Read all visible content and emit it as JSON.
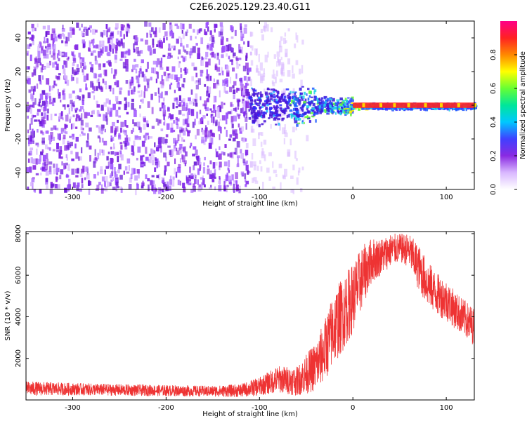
{
  "title": "C2E6.2025.129.23.40.G11",
  "colors": {
    "snr_line": "#ee3333",
    "spectrogram_low": "#7a1fe6",
    "spectrogram_mid": "#22d4e6",
    "spectrogram_high": "#ff2222"
  },
  "chart_data": [
    {
      "type": "heatmap",
      "name": "spectrogram",
      "xlabel": "Height of straight line (km)",
      "ylabel": "Frequency (Hz)",
      "xlim": [
        -350,
        130
      ],
      "ylim": [
        -50,
        50
      ],
      "xticks": [
        -300,
        -200,
        -100,
        0,
        100
      ],
      "yticks": [
        -40,
        -20,
        0,
        20,
        40
      ],
      "colorbar": {
        "label": "Normalized spectral amplitude",
        "range": [
          0,
          1
        ],
        "ticks": [
          "0.0",
          "0.2",
          "0.4",
          "0.6",
          "0.8"
        ],
        "colors": [
          "#ffffff",
          "#d9b8ff",
          "#8a2be2",
          "#4040ff",
          "#00c8ff",
          "#00e69a",
          "#66ff33",
          "#ffff00",
          "#ff8800",
          "#ff2222",
          "#ff0088"
        ]
      },
      "regions": [
        {
          "x_range": [
            -350,
            -110
          ],
          "freq_range": [
            -50,
            50
          ],
          "amplitude": 0.15
        },
        {
          "x_range": [
            -110,
            -40
          ],
          "freq_range": [
            -12,
            12
          ],
          "amplitude": 0.35
        },
        {
          "x_range": [
            -40,
            0
          ],
          "freq_range": [
            -6,
            6
          ],
          "amplitude": 0.5
        },
        {
          "x_range": [
            0,
            130
          ],
          "freq_range": [
            -2,
            2
          ],
          "amplitude": 0.9
        }
      ]
    },
    {
      "type": "line",
      "name": "snr",
      "xlabel": "Height of straight line (km)",
      "ylabel": "SNR (10 * v/v)",
      "xlim": [
        -350,
        130
      ],
      "ylim": [
        0,
        8100
      ],
      "xticks": [
        -300,
        -200,
        -100,
        0,
        100
      ],
      "yticks": [
        2000,
        4000,
        6000,
        8000
      ],
      "series": [
        {
          "x": [
            -350,
            -300,
            -250,
            -200,
            -150,
            -120,
            -100,
            -80,
            -60,
            -40,
            -30,
            -20,
            -10,
            0,
            10,
            20,
            30,
            40,
            50,
            60,
            70,
            80,
            90,
            100,
            110,
            120,
            130
          ],
          "y": [
            550,
            520,
            480,
            450,
            420,
            450,
            650,
            1000,
            900,
            1600,
            2400,
            3500,
            4200,
            4900,
            5900,
            6700,
            6900,
            7200,
            7300,
            7200,
            6400,
            5600,
            5100,
            4800,
            4300,
            3900,
            3500
          ],
          "noise": [
            350,
            300,
            280,
            270,
            260,
            320,
            450,
            650,
            700,
            1200,
            1500,
            1800,
            1800,
            1700,
            1500,
            1100,
            900,
            800,
            700,
            800,
            1100,
            1100,
            1000,
            1000,
            900,
            900,
            900
          ]
        }
      ]
    }
  ]
}
